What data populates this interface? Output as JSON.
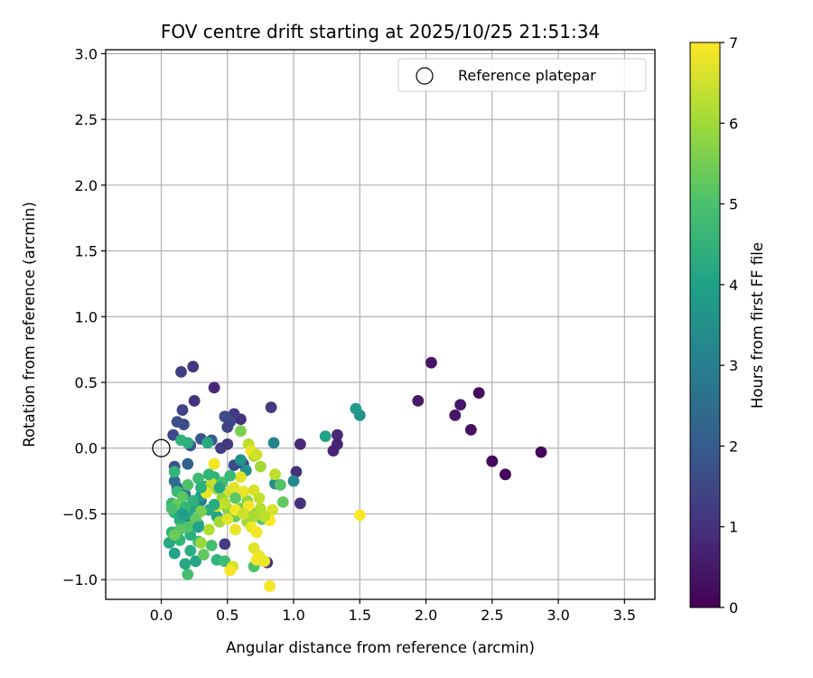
{
  "chart_data": {
    "type": "scatter",
    "title": "FOV centre drift starting at 2025/10/25 21:51:34",
    "xlabel": "Angular distance from reference (arcmin)",
    "ylabel": "Rotation from reference (arcmin)",
    "xlim": [
      -0.42,
      3.73
    ],
    "ylim": [
      -1.15,
      3.03
    ],
    "xticks": [
      "0.0",
      "0.5",
      "1.0",
      "1.5",
      "2.0",
      "2.5",
      "3.0",
      "3.5"
    ],
    "yticks": [
      "−1.0",
      "−0.5",
      "0.0",
      "0.5",
      "1.0",
      "1.5",
      "2.0",
      "2.5",
      "3.0"
    ],
    "grid": true,
    "legend": {
      "position": "top-right",
      "entries": [
        "Reference platepar"
      ]
    },
    "reference_point": {
      "x": 0.0,
      "y": 0.0,
      "label": "Reference platepar"
    },
    "colorbar": {
      "label": "Hours from first FF file",
      "min": 0,
      "max": 7,
      "ticks": [
        "0",
        "1",
        "2",
        "3",
        "4",
        "5",
        "6",
        "7"
      ],
      "colormap": "viridis"
    },
    "series": [
      {
        "name": "FOV centre drift",
        "points": [
          [
            2.87,
            -0.03,
            0.1
          ],
          [
            2.6,
            -0.2,
            0.1
          ],
          [
            2.5,
            -0.1,
            0.1
          ],
          [
            2.5,
            -0.1,
            0.15
          ],
          [
            2.4,
            0.42,
            0.2
          ],
          [
            2.34,
            0.14,
            0.3
          ],
          [
            2.26,
            0.33,
            0.4
          ],
          [
            2.22,
            0.25,
            0.4
          ],
          [
            2.04,
            0.65,
            0.4
          ],
          [
            1.94,
            0.36,
            0.5
          ],
          [
            1.33,
            0.1,
            0.8
          ],
          [
            1.33,
            0.03,
            0.7
          ],
          [
            1.3,
            -0.02,
            0.7
          ],
          [
            1.05,
            0.03,
            0.8
          ],
          [
            1.05,
            -0.42,
            1.0
          ],
          [
            1.02,
            -0.18,
            1.0
          ],
          [
            0.83,
            0.31,
            1.2
          ],
          [
            0.8,
            -0.87,
            0.8
          ],
          [
            0.6,
            0.22,
            1.0
          ],
          [
            0.55,
            0.26,
            1.2
          ],
          [
            0.52,
            0.2,
            1.5
          ],
          [
            0.5,
            0.16,
            1.4
          ],
          [
            0.48,
            0.24,
            1.6
          ],
          [
            0.4,
            0.46,
            0.8
          ],
          [
            0.25,
            0.36,
            1.0
          ],
          [
            0.24,
            0.62,
            1.1
          ],
          [
            0.15,
            0.58,
            1.3
          ],
          [
            0.16,
            0.29,
            1.4
          ],
          [
            0.17,
            0.18,
            1.6
          ],
          [
            0.12,
            0.2,
            1.7
          ],
          [
            0.09,
            0.1,
            1.5
          ],
          [
            0.22,
            0.02,
            1.8
          ],
          [
            0.3,
            0.07,
            1.9
          ],
          [
            0.38,
            0.06,
            2.0
          ],
          [
            0.45,
            0.0,
            1.3
          ],
          [
            0.5,
            0.03,
            1.1
          ],
          [
            0.48,
            -0.73,
            1.2
          ],
          [
            0.62,
            -0.12,
            1.5
          ],
          [
            0.55,
            -0.13,
            1.6
          ],
          [
            0.1,
            -0.14,
            1.8
          ],
          [
            0.12,
            -0.3,
            2.0
          ],
          [
            0.2,
            -0.12,
            2.2
          ],
          [
            0.1,
            -0.25,
            2.5
          ],
          [
            0.18,
            -0.35,
            2.7
          ],
          [
            0.3,
            -0.4,
            2.8
          ],
          [
            0.22,
            -0.55,
            3.1
          ],
          [
            0.85,
            0.04,
            3.2
          ],
          [
            1.0,
            -0.25,
            3.3
          ],
          [
            0.86,
            -0.27,
            3.4
          ],
          [
            0.64,
            -0.17,
            3.5
          ],
          [
            0.6,
            -0.09,
            3.6
          ],
          [
            1.5,
            0.25,
            3.6
          ],
          [
            1.47,
            0.3,
            3.8
          ],
          [
            1.24,
            0.09,
            4.0
          ],
          [
            0.35,
            0.04,
            4.2
          ],
          [
            0.2,
            0.04,
            4.4
          ],
          [
            0.15,
            0.06,
            4.5
          ],
          [
            0.1,
            -0.18,
            4.6
          ],
          [
            0.12,
            -0.33,
            4.7
          ],
          [
            0.08,
            -0.42,
            4.6
          ],
          [
            0.1,
            -0.49,
            4.4
          ],
          [
            0.14,
            -0.55,
            4.3
          ],
          [
            0.2,
            -0.5,
            4.1
          ],
          [
            0.26,
            -0.45,
            4.0
          ],
          [
            0.3,
            -0.36,
            3.9
          ],
          [
            0.34,
            -0.29,
            4.2
          ],
          [
            0.4,
            -0.22,
            4.5
          ],
          [
            0.36,
            -0.47,
            4.3
          ],
          [
            0.42,
            -0.52,
            4.1
          ],
          [
            0.28,
            -0.58,
            4.3
          ],
          [
            0.22,
            -0.66,
            4.4
          ],
          [
            0.14,
            -0.7,
            4.6
          ],
          [
            0.08,
            -0.64,
            4.5
          ],
          [
            0.06,
            -0.72,
            4.2
          ],
          [
            0.1,
            -0.8,
            4.0
          ],
          [
            0.22,
            -0.78,
            4.3
          ],
          [
            0.28,
            -0.71,
            4.7
          ],
          [
            0.38,
            -0.74,
            4.9
          ],
          [
            0.42,
            -0.85,
            4.6
          ],
          [
            0.48,
            -0.86,
            4.8
          ],
          [
            0.2,
            -0.96,
            4.9
          ],
          [
            0.18,
            -0.88,
            4.2
          ],
          [
            0.26,
            -0.86,
            4.1
          ],
          [
            0.7,
            -0.9,
            5.0
          ],
          [
            0.76,
            -0.54,
            5.1
          ],
          [
            0.7,
            -0.5,
            5.3
          ],
          [
            0.92,
            -0.41,
            5.3
          ],
          [
            0.9,
            -0.28,
            5.1
          ],
          [
            0.86,
            -0.2,
            6.3
          ],
          [
            0.75,
            -0.14,
            6.0
          ],
          [
            0.7,
            -0.06,
            6.1
          ],
          [
            0.66,
            0.03,
            6.3
          ],
          [
            0.6,
            0.13,
            5.6
          ],
          [
            0.65,
            -0.4,
            5.8
          ],
          [
            0.6,
            -0.46,
            5.5
          ],
          [
            0.56,
            -0.52,
            5.4
          ],
          [
            0.5,
            -0.46,
            5.7
          ],
          [
            0.46,
            -0.38,
            5.9
          ],
          [
            0.42,
            -0.31,
            6.0
          ],
          [
            0.4,
            -0.12,
            6.4
          ],
          [
            0.38,
            -0.27,
            6.5
          ],
          [
            0.34,
            -0.31,
            6.1
          ],
          [
            0.3,
            -0.48,
            5.6
          ],
          [
            0.26,
            -0.54,
            5.3
          ],
          [
            0.2,
            -0.6,
            5.1
          ],
          [
            0.14,
            -0.62,
            5.2
          ],
          [
            0.1,
            -0.66,
            5.4
          ],
          [
            0.3,
            -0.72,
            5.9
          ],
          [
            0.32,
            -0.81,
            5.3
          ],
          [
            0.36,
            -0.62,
            6.2
          ],
          [
            0.44,
            -0.56,
            6.0
          ],
          [
            0.48,
            -0.42,
            6.3
          ],
          [
            0.52,
            -0.33,
            6.5
          ],
          [
            0.55,
            -0.3,
            6.7
          ],
          [
            0.62,
            -0.33,
            6.8
          ],
          [
            0.66,
            -0.44,
            6.9
          ],
          [
            0.7,
            -0.32,
            6.6
          ],
          [
            0.74,
            -0.38,
            6.4
          ],
          [
            0.75,
            -0.46,
            6.2
          ],
          [
            0.7,
            -0.52,
            6.1
          ],
          [
            0.65,
            -0.56,
            6.0
          ],
          [
            0.68,
            -0.6,
            6.8
          ],
          [
            0.72,
            -0.64,
            6.9
          ],
          [
            0.7,
            -0.76,
            6.7
          ],
          [
            0.74,
            -0.82,
            6.8
          ],
          [
            0.72,
            -0.85,
            6.9
          ],
          [
            0.78,
            -0.86,
            6.8
          ],
          [
            0.82,
            -1.05,
            6.9
          ],
          [
            0.54,
            -0.9,
            6.6
          ],
          [
            0.52,
            -0.93,
            6.9
          ],
          [
            0.56,
            -0.62,
            6.8
          ],
          [
            0.56,
            -0.47,
            6.9
          ],
          [
            0.84,
            -0.47,
            6.6
          ],
          [
            0.82,
            -0.55,
            7.0
          ],
          [
            1.5,
            -0.51,
            7.0
          ],
          [
            0.68,
            -0.02,
            6.8
          ],
          [
            0.72,
            -0.05,
            6.5
          ],
          [
            0.6,
            -0.22,
            6.7
          ],
          [
            0.4,
            -0.12,
            6.9
          ],
          [
            0.34,
            -0.34,
            6.8
          ],
          [
            0.42,
            -0.44,
            6.6
          ],
          [
            0.5,
            -0.54,
            6.7
          ],
          [
            0.62,
            -0.5,
            6.5
          ],
          [
            0.78,
            -0.52,
            6.3
          ],
          [
            0.56,
            -0.38,
            5.2
          ],
          [
            0.46,
            -0.26,
            4.9
          ],
          [
            0.52,
            -0.21,
            4.7
          ],
          [
            0.36,
            -0.2,
            4.6
          ],
          [
            0.28,
            -0.23,
            4.8
          ],
          [
            0.2,
            -0.28,
            5.0
          ],
          [
            0.16,
            -0.37,
            5.2
          ],
          [
            0.12,
            -0.43,
            5.4
          ],
          [
            0.08,
            -0.46,
            4.9
          ],
          [
            0.18,
            -0.45,
            4.7
          ],
          [
            0.24,
            -0.4,
            4.5
          ],
          [
            0.3,
            -0.3,
            4.4
          ],
          [
            0.4,
            -0.43,
            4.3
          ],
          [
            0.44,
            -0.3,
            4.2
          ],
          [
            0.28,
            -0.6,
            4.0
          ],
          [
            0.16,
            -0.5,
            3.9
          ]
        ]
      }
    ]
  }
}
